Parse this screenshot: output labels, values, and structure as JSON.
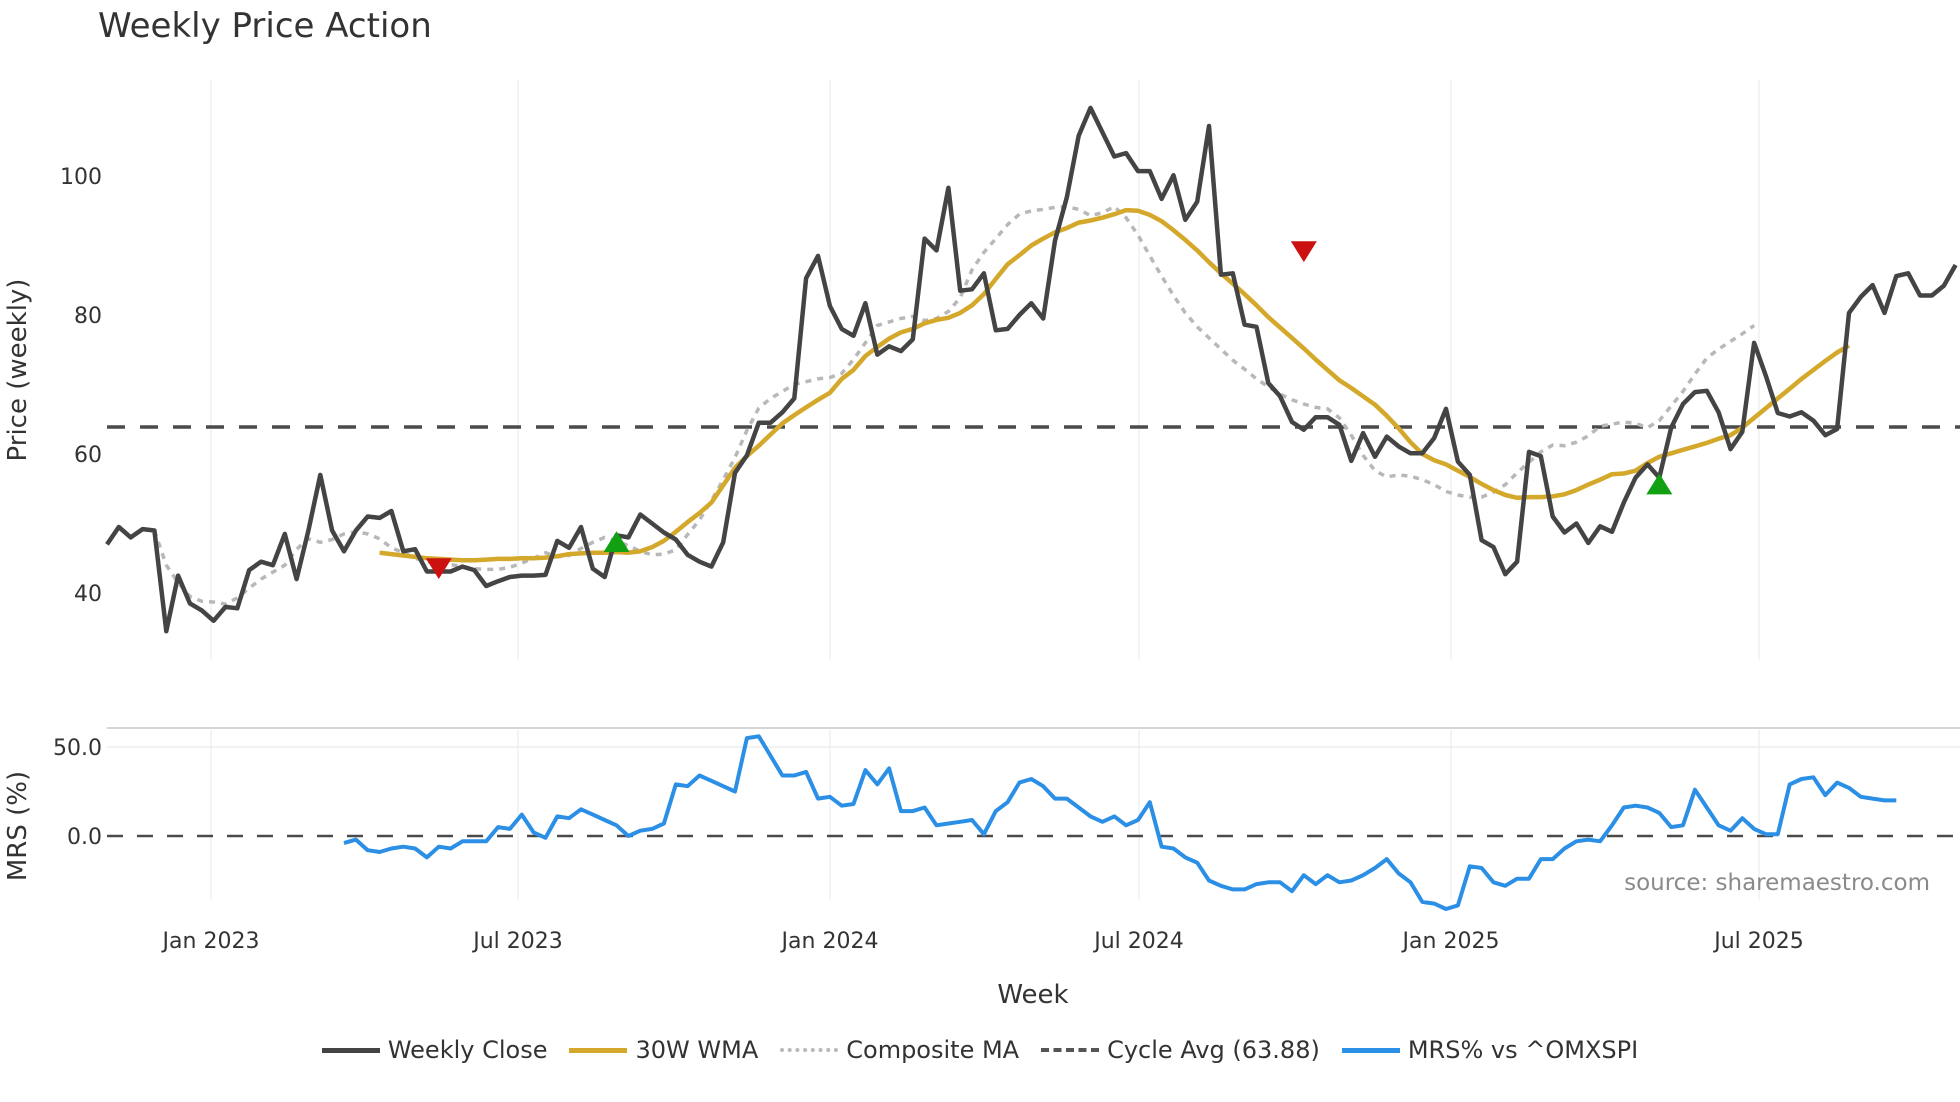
{
  "header": {
    "title": "Weekly Price Action"
  },
  "source_note": "source: sharemaestro.com",
  "legend": [
    {
      "label": "Weekly Close",
      "color": "#444444",
      "style": "solid"
    },
    {
      "label": "30W WMA",
      "color": "#D4A82A",
      "style": "solid"
    },
    {
      "label": "Composite MA",
      "color": "#B8B8B8",
      "style": "dotted"
    },
    {
      "label": "Cycle Avg (63.88)",
      "color": "#555555",
      "style": "dashed"
    },
    {
      "label": "MRS% vs ^OMXSPI",
      "color": "#2B8FE6",
      "style": "solid"
    }
  ],
  "chart_data": [
    {
      "type": "line",
      "title": "Weekly Price Action",
      "xlabel": "Week",
      "ylabel": "Price (weekly)",
      "yticks": [
        40,
        60,
        80,
        100
      ],
      "ylim": [
        30,
        115
      ],
      "grid": true,
      "x_tick_labels": [
        "Jan 2023",
        "Jul 2023",
        "Jan 2024",
        "Jul 2024",
        "Jan 2025",
        "Jul 2025"
      ],
      "cycle_avg": 63.88,
      "series": [
        {
          "name": "Weekly Close",
          "values": [
            47,
            49.5,
            48,
            49.2,
            49,
            34.5,
            42.5,
            38.5,
            37.5,
            36,
            38,
            37.8,
            43.3,
            44.5,
            44,
            48.5,
            42,
            49,
            57,
            49,
            46,
            49,
            51,
            50.8,
            51.8,
            46,
            46.3,
            43.1,
            43.1,
            43.1,
            43.8,
            43.3,
            41,
            41.7,
            42.3,
            42.5,
            42.5,
            42.6,
            47.5,
            46.5,
            49.5,
            43.5,
            42.3,
            48.3,
            48,
            51.3,
            50,
            48.7,
            47.7,
            45.5,
            44.5,
            43.8,
            47.3,
            57.3,
            59.8,
            64.5,
            64.5,
            66,
            68,
            85.3,
            88.5,
            81.3,
            78,
            77,
            81.7,
            74.3,
            75.5,
            74.8,
            76.5,
            91,
            89.3,
            98.3,
            83.5,
            83.7,
            86,
            77.8,
            78,
            80,
            81.7,
            79.5,
            90.7,
            96.9,
            105.8,
            109.8,
            106.3,
            102.8,
            103.3,
            100.7,
            100.7,
            96.7,
            100.1,
            93.7,
            96.3,
            107.2,
            85.8,
            86,
            78.6,
            78.3,
            70.2,
            68.3,
            64.6,
            63.5,
            65.3,
            65.3,
            64.2,
            59,
            63,
            59.6,
            62.5,
            61.1,
            60.1,
            60.1,
            62.3,
            66.5,
            58.9,
            57,
            47.6,
            46.6,
            42.7,
            44.5,
            60.3,
            59.7,
            51,
            48.7,
            50,
            47.2,
            49.6,
            48.8,
            53,
            56.6,
            58.5,
            56.6,
            63.8,
            67.2,
            68.9,
            69.1,
            66,
            60.7,
            63.2,
            76,
            71.2,
            65.9,
            65.4,
            66,
            64.8,
            62.7,
            63.6,
            80.3,
            82.6,
            84.3,
            80.3,
            85.6,
            86,
            82.8,
            82.8,
            84.2,
            87.2
          ]
        },
        {
          "name": "30W WMA",
          "start_index": 23,
          "values": [
            45.8,
            45.6,
            45.4,
            45.2,
            45,
            44.9,
            44.8,
            44.7,
            44.7,
            44.8,
            44.9,
            44.9,
            45,
            45,
            45.1,
            45.3,
            45.6,
            45.7,
            45.8,
            45.8,
            45.9,
            45.8,
            46,
            46.6,
            47.5,
            48.8,
            50.2,
            51.5,
            53,
            55.5,
            58,
            59.7,
            61.2,
            62.8,
            64.4,
            65.6,
            66.7,
            67.8,
            68.8,
            70.8,
            72.1,
            74.1,
            75.4,
            76.6,
            77.5,
            78,
            78.8,
            79.3,
            79.6,
            80.3,
            81.4,
            83,
            85.2,
            87.3,
            88.6,
            90,
            91,
            91.9,
            92.5,
            93.3,
            93.6,
            94,
            94.5,
            95.1,
            95,
            94.4,
            93.5,
            92.2,
            90.8,
            89.3,
            87.6,
            86,
            84.5,
            83,
            81.4,
            79.7,
            78.2,
            76.7,
            75.2,
            73.6,
            72.1,
            70.6,
            69.5,
            68.3,
            67.1,
            65.5,
            63.7,
            61.7,
            60,
            59.1,
            58.5,
            57.6,
            56.7,
            55.7,
            54.8,
            54.1,
            53.7,
            53.8,
            53.8,
            53.9,
            54.2,
            54.8,
            55.6,
            56.3,
            57.1,
            57.2,
            57.6,
            58.7,
            59.6,
            60.1,
            60.6,
            61.1,
            61.6,
            62.2,
            62.7,
            63.8,
            65.2,
            66.6,
            68,
            69.4,
            70.8,
            72.1,
            73.4,
            74.6,
            75.6
          ]
        },
        {
          "name": "Composite MA",
          "start_index": 4,
          "values": [
            49,
            44,
            41.5,
            39.5,
            38.8,
            38.7,
            38.4,
            39.3,
            40.7,
            42,
            43,
            44,
            46.3,
            47.8,
            47.3,
            47.7,
            48.5,
            48.8,
            48.5,
            47.8,
            46.5,
            45.8,
            45,
            44.5,
            44.3,
            44.1,
            43.8,
            43.5,
            43.4,
            43.4,
            43.7,
            44.3,
            45,
            45.8,
            45.2,
            45.4,
            46.4,
            47.3,
            48,
            47.5,
            46.8,
            46,
            45.5,
            45.6,
            46.2,
            48.4,
            50.5,
            53.3,
            56.3,
            59.5,
            63.4,
            66.6,
            68,
            69,
            70,
            70.4,
            70.8,
            71,
            71.6,
            73.6,
            76,
            78.5,
            79,
            79.5,
            79.8,
            79.2,
            79.5,
            80.5,
            82.5,
            86.5,
            89,
            91,
            93,
            94.5,
            95,
            95.2,
            95.5,
            95.6,
            95.2,
            94.3,
            94.7,
            95.6,
            94,
            91.5,
            88.5,
            85.6,
            82.8,
            80.3,
            78.3,
            76.7,
            75.1,
            73.5,
            72.2,
            70.8,
            69.7,
            68.6,
            67.8,
            67.2,
            66.7,
            66.5,
            65.2,
            62.7,
            59.8,
            57.6,
            56.7,
            57,
            56.8,
            56.3,
            55.6,
            54.6,
            54.1,
            53.8,
            53.8,
            54.5,
            55.6,
            57.3,
            58.8,
            60.3,
            61.3,
            61.2,
            61.7,
            62.6,
            64,
            64.3,
            64.6,
            64.4,
            63.8,
            64.8,
            66.9,
            69,
            71.5,
            73.8,
            75.1,
            76.2,
            77.3,
            78.5
          ]
        }
      ],
      "markers": [
        {
          "type": "sell",
          "shape": "triangle-down",
          "color": "#CC1111",
          "index": 28,
          "value": 43.6
        },
        {
          "type": "buy",
          "shape": "triangle-up",
          "color": "#11A011",
          "index": 43,
          "value": 47.3
        },
        {
          "type": "sell",
          "shape": "triangle-down",
          "color": "#CC1111",
          "index": 101,
          "value": 89.2
        },
        {
          "type": "buy",
          "shape": "triangle-up",
          "color": "#11A011",
          "index": 131,
          "value": 55.6
        }
      ]
    },
    {
      "type": "line",
      "ylabel": "MRS (%)",
      "yticks": [
        0.0,
        50.0
      ],
      "ytick_labels": [
        "0.0",
        "50.0"
      ],
      "zero_line": 0,
      "series": [
        {
          "name": "MRS% vs ^OMXSPI",
          "start_index": 20,
          "values": [
            -4,
            -2,
            -8,
            -9,
            -7,
            -6,
            -7,
            -12,
            -6,
            -7,
            -3,
            -3,
            -3,
            5,
            4,
            12,
            2,
            -1,
            11,
            10,
            15,
            12,
            9,
            6,
            0,
            3,
            4,
            7,
            29,
            28,
            34,
            31,
            28,
            25,
            55,
            56,
            45,
            34,
            34,
            36,
            21,
            22,
            17,
            18,
            37,
            29,
            38,
            14,
            14,
            16,
            6,
            7,
            8,
            9,
            1,
            14,
            19,
            30,
            32,
            28,
            21,
            21,
            16,
            11,
            8,
            11,
            6,
            9,
            19,
            -6,
            -7,
            -12,
            -15,
            -25,
            -28,
            -30,
            -30,
            -27,
            -26,
            -26,
            -31,
            -22,
            -27,
            -22,
            -26,
            -25,
            -22,
            -18,
            -13,
            -21,
            -26,
            -37,
            -38,
            -41,
            -39,
            -17,
            -18,
            -26,
            -28,
            -24,
            -24,
            -13,
            -13,
            -7,
            -3,
            -2,
            -3,
            6,
            16,
            17,
            16,
            13,
            5,
            6,
            26,
            16,
            6,
            3,
            10,
            4,
            1,
            1,
            29,
            32,
            33,
            23,
            30,
            27,
            22,
            21,
            20,
            20
          ]
        }
      ]
    }
  ]
}
